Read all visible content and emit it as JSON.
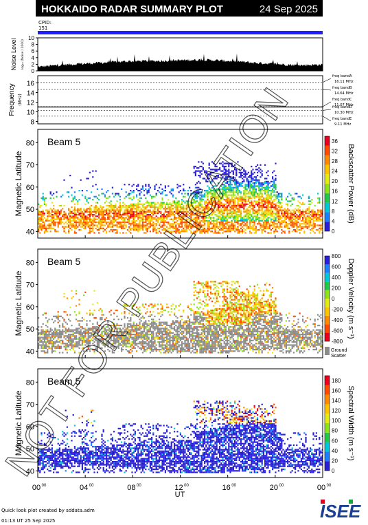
{
  "header": {
    "title": "HOKKAIDO RADAR SUMMARY PLOT",
    "date": "24 Sep 2025",
    "cpid_label": "CPID:",
    "cpid_value": "151",
    "band_color": "#1f1fff"
  },
  "footer": {
    "line1": "Quick look plot created by sddata.adm",
    "line2": "01:13 UT 25 Sep 2025"
  },
  "logo": {
    "text": "ISEE"
  },
  "watermark": "NOT FOR PUBLICATION",
  "chart_data": [
    {
      "type": "area",
      "ylabel": "Noise Level",
      "ylabel_unit": "log₁₀ (Noise / 1000)",
      "ylim": [
        0,
        10
      ],
      "yticks": [
        "0",
        "2",
        "4",
        "6",
        "8",
        "10"
      ],
      "profile": [
        [
          0,
          1.2
        ],
        [
          1,
          1.5
        ],
        [
          2,
          1.8
        ],
        [
          3,
          2.0
        ],
        [
          4,
          2.2
        ],
        [
          5,
          2.4
        ],
        [
          6,
          2.6
        ],
        [
          7,
          2.8
        ],
        [
          8,
          2.9
        ],
        [
          9,
          3.0
        ],
        [
          10,
          3.0
        ],
        [
          11,
          3.1
        ],
        [
          12,
          3.2
        ],
        [
          13,
          3.3
        ],
        [
          14,
          3.3
        ],
        [
          15,
          3.2
        ],
        [
          16,
          3.0
        ],
        [
          17,
          2.8
        ],
        [
          18,
          2.5
        ],
        [
          19,
          2.3
        ],
        [
          20,
          2.1
        ],
        [
          21,
          1.9
        ],
        [
          22,
          1.7
        ],
        [
          23,
          1.8
        ],
        [
          24,
          1.9
        ]
      ]
    },
    {
      "type": "line",
      "ylabel": "Frequency",
      "ylabel_unit": "(MHz)",
      "ylim": [
        7.5,
        17.5
      ],
      "yticks": [
        "8",
        "10",
        "12",
        "14",
        "16"
      ],
      "bands": [
        {
          "name": "freq bandA",
          "value": "16.11 MHz",
          "mhz": 16.11
        },
        {
          "name": "freq bandB",
          "value": "14.64 MHz",
          "mhz": 14.64
        },
        {
          "name": "freq bandC",
          "value": "11.07 MHz",
          "mhz": 11.07
        },
        {
          "name": "freq bandD",
          "value": "10.30 MHz",
          "mhz": 10.3
        },
        {
          "name": "freq bandE",
          "value": "9.11 MHz",
          "mhz": 9.11
        }
      ],
      "frequency_used_mhz": 11.0
    },
    {
      "type": "heatmap",
      "beam": "Beam  5",
      "ylabel": "Magnetic Latitude",
      "ylim": [
        37,
        86
      ],
      "yticks": [
        "40",
        "50",
        "60",
        "70",
        "80"
      ],
      "colorbar_label": "Backscatter Power (dB)",
      "colorbar_ticks": [
        "0",
        "4",
        "8",
        "12",
        "16",
        "20",
        "24",
        "28",
        "32",
        "36"
      ],
      "colorbar_range": [
        0,
        36
      ],
      "colors": [
        "#2a1fd6",
        "#1b7fff",
        "#00c8d8",
        "#22c84a",
        "#8ee41c",
        "#e4ec18",
        "#ffc400",
        "#ff8a00",
        "#ff4a00",
        "#e8001e"
      ]
    },
    {
      "type": "heatmap",
      "beam": "Beam  5",
      "ylabel": "Magnetic Latitude",
      "ylim": [
        37,
        86
      ],
      "yticks": [
        "40",
        "50",
        "60",
        "70",
        "80"
      ],
      "colorbar_label": "Doppler Velocity (m s⁻¹)",
      "colorbar_ticks": [
        "-800",
        "-600",
        "-400",
        "-200",
        "0",
        "200",
        "400",
        "600",
        "800"
      ],
      "colorbar_range": [
        -800,
        800
      ],
      "colors": [
        "#e8001e",
        "#ff4a00",
        "#ff8a00",
        "#ffc400",
        "#e4ec18",
        "#8ee41c",
        "#22c84a",
        "#00c8d8",
        "#1b7fff",
        "#2a1fd6"
      ],
      "ground_scatter_label": [
        "Ground",
        "Scatter"
      ],
      "ground_scatter_color": "#8c8c8c"
    },
    {
      "type": "heatmap",
      "beam": "Beam  5",
      "ylabel": "Magnetic Latitude",
      "ylim": [
        37,
        86
      ],
      "yticks": [
        "40",
        "50",
        "60",
        "70",
        "80"
      ],
      "colorbar_label": "Spectral Width (m s⁻¹)",
      "colorbar_ticks": [
        "0",
        "20",
        "40",
        "60",
        "80",
        "100",
        "120",
        "140",
        "160",
        "180"
      ],
      "colorbar_range": [
        0,
        180
      ],
      "colors": [
        "#2a1fd6",
        "#1b7fff",
        "#00c8d8",
        "#22c84a",
        "#8ee41c",
        "#e4ec18",
        "#ffc400",
        "#ff8a00",
        "#ff4a00",
        "#e8001e"
      ]
    }
  ],
  "time_axis": {
    "xlabel": "UT",
    "ticks": [
      {
        "h": "00",
        "m": "00"
      },
      {
        "h": "04",
        "m": "00"
      },
      {
        "h": "08",
        "m": "00"
      },
      {
        "h": "12",
        "m": "00"
      },
      {
        "h": "16",
        "m": "00"
      },
      {
        "h": "20",
        "m": "00"
      },
      {
        "h": "00",
        "m": "00"
      }
    ],
    "xlim_hours": [
      0,
      24
    ]
  }
}
